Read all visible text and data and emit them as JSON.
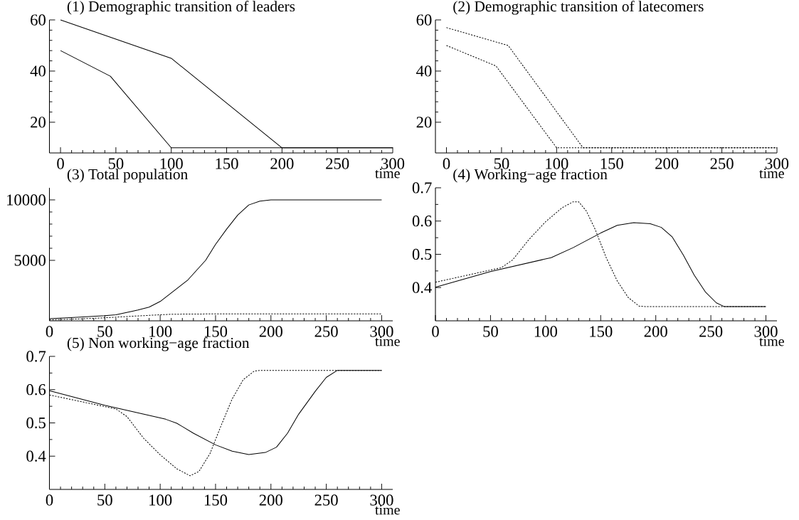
{
  "chart_data": [
    {
      "type": "line",
      "title": "(1) Demographic transition of leaders",
      "xlabel": "time",
      "xlim": [
        -10,
        300
      ],
      "xticks": [
        0,
        50,
        100,
        150,
        200,
        250,
        300
      ],
      "ylim": [
        8,
        60
      ],
      "yticks": [
        20,
        40,
        60
      ],
      "series": [
        {
          "color": "#000000",
          "line_style": "solid",
          "x": [
            0,
            100,
            200,
            300
          ],
          "values": [
            60,
            45,
            10,
            10
          ]
        },
        {
          "color": "#000000",
          "line_style": "solid",
          "x": [
            0,
            45,
            100,
            300
          ],
          "values": [
            48,
            38,
            10,
            10
          ]
        }
      ]
    },
    {
      "type": "line",
      "title": "(2) Demographic transition of latecomers",
      "xlabel": "time",
      "xlim": [
        -10,
        300
      ],
      "xticks": [
        0,
        50,
        100,
        150,
        200,
        250,
        300
      ],
      "ylim": [
        8,
        60
      ],
      "yticks": [
        20,
        40,
        60
      ],
      "series": [
        {
          "color": "#000000",
          "line_style": "dotted",
          "x": [
            0,
            56,
            124,
            300
          ],
          "values": [
            57,
            50,
            10,
            10
          ]
        },
        {
          "color": "#000000",
          "line_style": "dotted",
          "x": [
            0,
            45,
            100,
            300
          ],
          "values": [
            50,
            42,
            10,
            10
          ]
        }
      ]
    },
    {
      "type": "line",
      "title": "(3) Total population",
      "xlabel": "time",
      "xlim": [
        0,
        310
      ],
      "xticks": [
        0,
        50,
        100,
        150,
        200,
        250,
        300
      ],
      "ylim": [
        0,
        11000
      ],
      "yticks": [
        5000,
        10000
      ],
      "series": [
        {
          "color": "#000000",
          "line_style": "solid",
          "x": [
            0,
            25,
            50,
            60,
            75,
            80,
            90,
            100,
            125,
            141,
            150,
            160,
            170,
            180,
            190,
            200,
            300
          ],
          "values": [
            170,
            290,
            420,
            500,
            800,
            900,
            1130,
            1600,
            3380,
            5000,
            6320,
            7580,
            8740,
            9580,
            9900,
            10000,
            10000
          ]
        },
        {
          "color": "#000000",
          "line_style": "dotted",
          "x": [
            0,
            25,
            50,
            75,
            100,
            110,
            125,
            150,
            300
          ],
          "values": [
            80,
            150,
            250,
            380,
            500,
            540,
            560,
            570,
            570
          ]
        }
      ]
    },
    {
      "type": "line",
      "title": "(4) Working−age fraction",
      "xlabel": "time",
      "xlim": [
        0,
        310
      ],
      "xticks": [
        0,
        50,
        100,
        150,
        200,
        250,
        300
      ],
      "ylim": [
        0.3,
        0.7
      ],
      "yticks": [
        0.4,
        0.5,
        0.6,
        0.7
      ],
      "series": [
        {
          "color": "#000000",
          "line_style": "solid",
          "x": [
            0,
            50,
            105,
            125,
            150,
            165,
            180,
            195,
            205,
            215,
            225,
            235,
            245,
            255,
            262,
            300
          ],
          "values": [
            0.401,
            0.448,
            0.49,
            0.52,
            0.564,
            0.587,
            0.595,
            0.592,
            0.581,
            0.552,
            0.498,
            0.437,
            0.387,
            0.354,
            0.343,
            0.343
          ]
        },
        {
          "color": "#000000",
          "line_style": "dotted",
          "x": [
            0,
            60,
            70,
            85,
            100,
            115,
            125,
            130,
            137,
            145,
            155,
            165,
            175,
            185,
            190,
            300
          ],
          "values": [
            0.416,
            0.46,
            0.483,
            0.545,
            0.598,
            0.64,
            0.658,
            0.658,
            0.63,
            0.575,
            0.49,
            0.42,
            0.37,
            0.344,
            0.343,
            0.343
          ]
        }
      ]
    },
    {
      "type": "line",
      "title": "(5) Non working−age fraction",
      "xlabel": "time",
      "xlim": [
        0,
        310
      ],
      "xticks": [
        0,
        50,
        100,
        150,
        200,
        250,
        300
      ],
      "ylim": [
        0.3,
        0.7
      ],
      "yticks": [
        0.4,
        0.5,
        0.6,
        0.7
      ],
      "series": [
        {
          "color": "#000000",
          "line_style": "solid",
          "x": [
            0,
            50,
            105,
            115,
            130,
            150,
            165,
            180,
            195,
            205,
            215,
            225,
            240,
            250,
            260,
            300
          ],
          "values": [
            0.597,
            0.553,
            0.511,
            0.499,
            0.469,
            0.434,
            0.415,
            0.405,
            0.411,
            0.427,
            0.469,
            0.526,
            0.595,
            0.637,
            0.658,
            0.658
          ]
        },
        {
          "color": "#000000",
          "line_style": "dotted",
          "x": [
            0,
            60,
            70,
            85,
            100,
            115,
            127,
            135,
            145,
            155,
            165,
            175,
            185,
            190,
            300
          ],
          "values": [
            0.584,
            0.542,
            0.519,
            0.454,
            0.404,
            0.362,
            0.341,
            0.354,
            0.408,
            0.492,
            0.572,
            0.63,
            0.656,
            0.658,
            0.658
          ]
        }
      ]
    }
  ]
}
